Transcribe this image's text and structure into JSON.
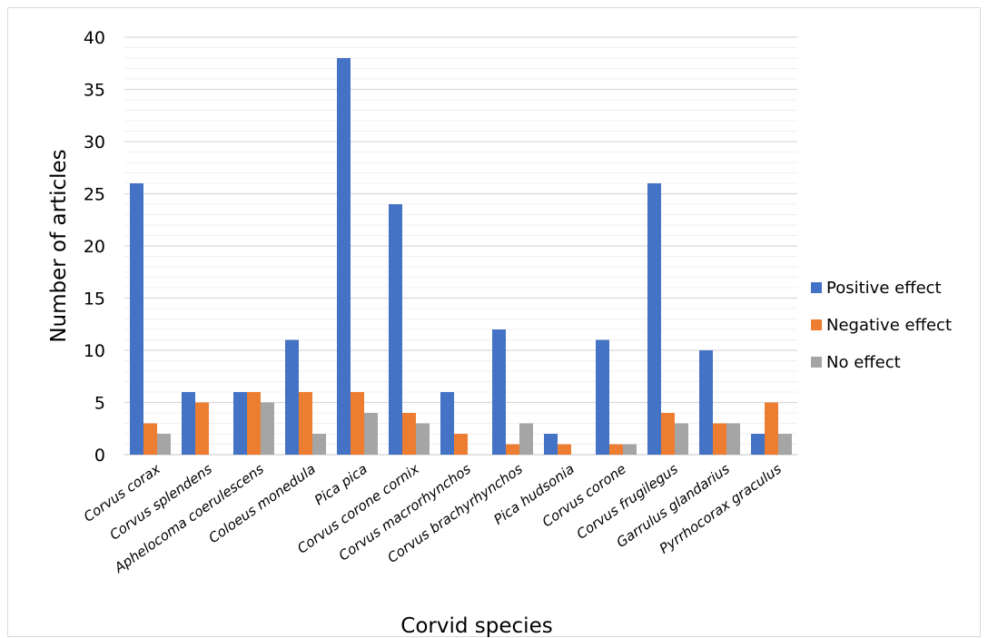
{
  "chart_data": {
    "type": "bar",
    "title": "",
    "xlabel": "Corvid species",
    "ylabel": "Number of articles",
    "ylim": [
      0,
      40
    ],
    "yticks": [
      0,
      5,
      10,
      15,
      20,
      25,
      30,
      35,
      40
    ],
    "minor_gridlines": true,
    "legend_position": "right",
    "categories": [
      "Corvus corax",
      "Corvus splendens",
      "Aphelocoma coerulescens",
      "Coloeus monedula",
      "Pica pica",
      "Corvus corone cornix",
      "Corvus macrorhynchos",
      "Corvus brachyrhynchos",
      "Pica hudsonia",
      "Corvus corone",
      "Corvus frugilegus",
      "Garrulus glandarius",
      "Pyrrhocorax graculus"
    ],
    "series": [
      {
        "name": "Positive effect",
        "color": "#4472C4",
        "values": [
          26,
          6,
          6,
          11,
          38,
          24,
          6,
          12,
          2,
          11,
          26,
          10,
          2
        ]
      },
      {
        "name": "Negative effect",
        "color": "#ED7D31",
        "values": [
          3,
          5,
          6,
          6,
          6,
          4,
          2,
          1,
          1,
          1,
          4,
          3,
          5
        ]
      },
      {
        "name": "No effect",
        "color": "#A5A5A5",
        "values": [
          2,
          0,
          5,
          2,
          4,
          3,
          0,
          3,
          0,
          1,
          3,
          3,
          2
        ]
      }
    ]
  }
}
